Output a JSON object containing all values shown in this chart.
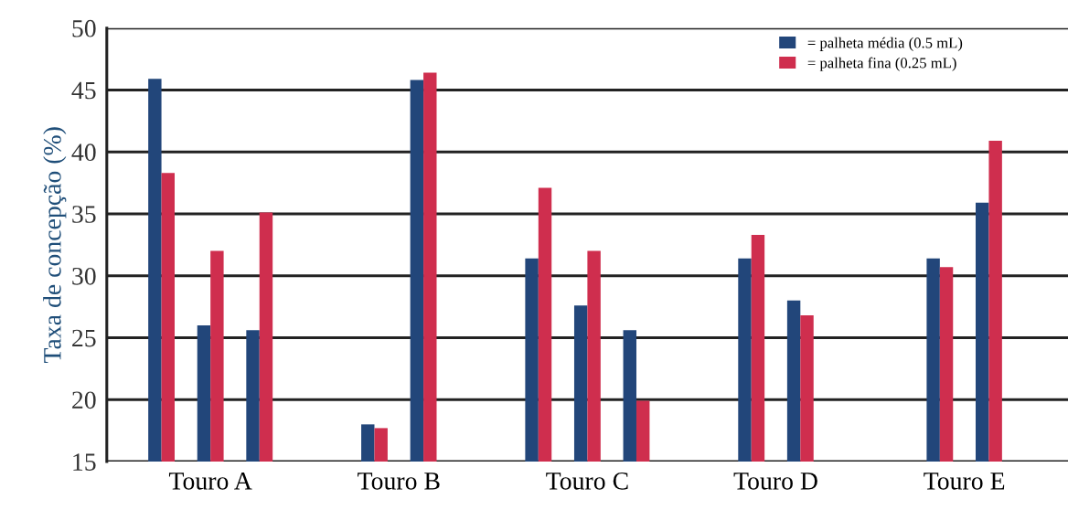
{
  "chart_data": {
    "type": "bar",
    "ylabel": "Taxa de concepção (%)",
    "categories": [
      "Touro A",
      "Touro B",
      "Touro C",
      "Touro D",
      "Touro E"
    ],
    "series": [
      {
        "name": "= palheta média (0.5 mL)",
        "color": "#22467a",
        "values": [
          45.9,
          18.0,
          31.4,
          31.4,
          31.4
        ]
      },
      {
        "name": "= palheta fina (0.25 mL)",
        "color": "#cf2e4e",
        "values": [
          38.3,
          17.7,
          37.1,
          33.3,
          30.7
        ]
      },
      {
        "color": "#22467a",
        "values": [
          26.0,
          45.8,
          27.6,
          28.0,
          35.9
        ]
      },
      {
        "color": "#cf2e4e",
        "values": [
          32.0,
          46.4,
          32.0,
          26.8,
          40.9
        ]
      },
      {
        "color": "#22467a",
        "values": [
          25.6,
          null,
          25.6,
          null,
          null
        ]
      },
      {
        "color": "#cf2e4e",
        "values": [
          35.1,
          null,
          19.9,
          null,
          null
        ]
      }
    ],
    "ylim": [
      15,
      50
    ],
    "yticks": [
      15,
      20,
      25,
      30,
      35,
      40,
      45,
      50
    ],
    "grid": "y",
    "legend": "top right"
  }
}
